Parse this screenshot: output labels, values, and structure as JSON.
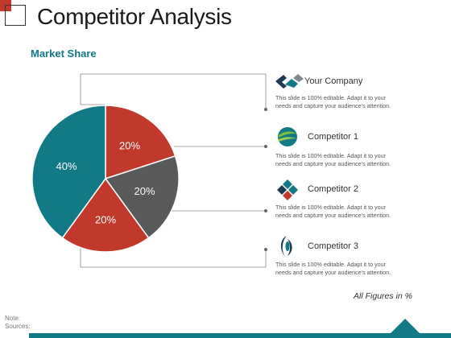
{
  "page": {
    "title": "Competitor Analysis",
    "subtitle": "Market Share"
  },
  "chart_data": {
    "type": "pie",
    "slices": [
      {
        "label": "20%",
        "value": 20,
        "color": "#c0392b"
      },
      {
        "label": "20%",
        "value": 20,
        "color": "#58595b"
      },
      {
        "label": "20%",
        "value": 20,
        "color": "#c0392b"
      },
      {
        "label": "40%",
        "value": 40,
        "color": "#127a87"
      }
    ]
  },
  "legend": {
    "items": [
      {
        "name": "Your Company",
        "icon": "diamond-arrow-icon",
        "desc_line1": "This slide is 100% editable. Adapt it to your",
        "desc_line2": "needs and capture your audience's attention."
      },
      {
        "name": "Competitor 1",
        "icon": "globe-swoosh-icon",
        "desc_line1": "This slide is 100% editable. Adapt it to your",
        "desc_line2": "needs and capture your audience's attention."
      },
      {
        "name": "Competitor 2",
        "icon": "four-diamonds-icon",
        "desc_line1": "This slide is 100% editable. Adapt it to your",
        "desc_line2": "needs and capture your audience's attention."
      },
      {
        "name": "Competitor 3",
        "icon": "eye-crescent-icon",
        "desc_line1": "This slide is 100% editable. Adapt it to your",
        "desc_line2": "needs and capture your audience's attention."
      }
    ]
  },
  "footer": {
    "figures": "All Figures in %",
    "note": "Note:",
    "sources": "Sources:"
  },
  "colors": {
    "accent": "#127a87",
    "red": "#c0392b",
    "gray": "#58595b"
  }
}
